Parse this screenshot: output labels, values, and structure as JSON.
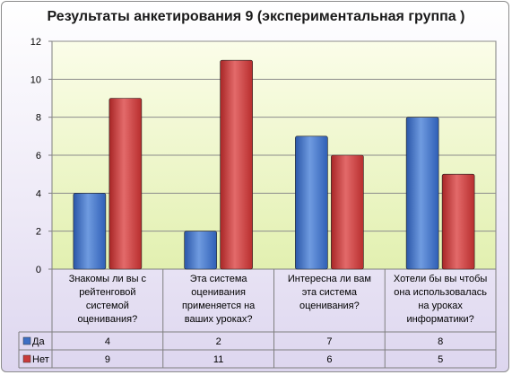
{
  "chart_data": {
    "type": "bar",
    "title": "Результаты анкетирования  9 (экспериментальная группа )",
    "categories": [
      [
        "Знакомы ли вы с",
        "рейтенговой",
        "системой",
        "оценивания?"
      ],
      [
        "Эта система",
        "оценивания",
        "применяется  на",
        "ваших уроках?"
      ],
      [
        "Интересна ли вам",
        "эта система",
        "оценивания?"
      ],
      [
        "Хотели бы вы чтобы",
        "она использовалась",
        "на уроках",
        "информатики?"
      ]
    ],
    "series": [
      {
        "name": "Да",
        "values": [
          4,
          2,
          7,
          8
        ],
        "color": "#3d6fc4"
      },
      {
        "name": "Нет",
        "values": [
          9,
          11,
          6,
          5
        ],
        "color": "#c93a3a"
      }
    ],
    "y_ticks": [
      "0",
      "2",
      "4",
      "6",
      "8",
      "10",
      "12"
    ],
    "ylim": [
      0,
      12
    ],
    "grid": true,
    "plot_background": "#ecf5c8",
    "legend": "data-table-left"
  }
}
